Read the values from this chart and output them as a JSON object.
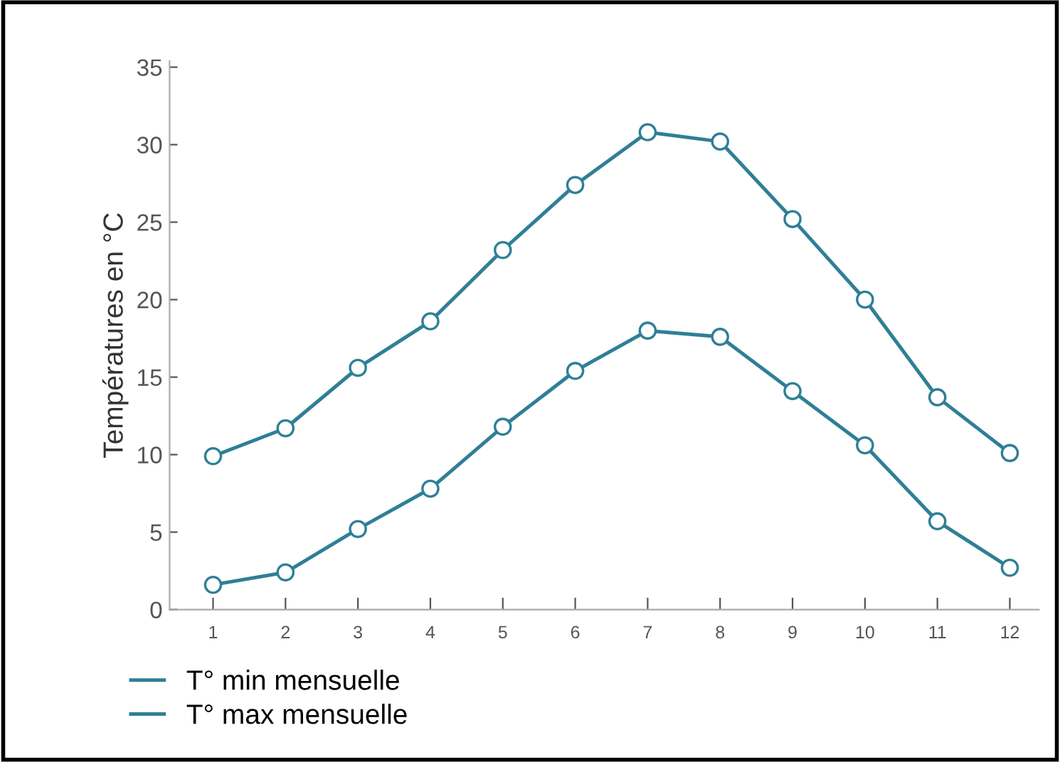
{
  "chart_data": {
    "type": "line",
    "ylabel": "Températures en °C",
    "x": [
      1,
      2,
      3,
      4,
      5,
      6,
      7,
      8,
      9,
      10,
      11,
      12
    ],
    "series": [
      {
        "name": "T° min mensuelle",
        "color": "#2f7f96",
        "values": [
          1.6,
          2.4,
          5.2,
          7.8,
          11.8,
          15.4,
          18.0,
          17.6,
          14.1,
          10.6,
          5.7,
          2.7
        ]
      },
      {
        "name": "T° max mensuelle",
        "color": "#2f7f96",
        "values": [
          9.9,
          11.7,
          15.6,
          18.6,
          23.2,
          27.4,
          30.8,
          30.2,
          25.2,
          20.0,
          13.7,
          10.1
        ]
      }
    ],
    "xlim": [
      0.4,
      12.4
    ],
    "xticks": [
      1,
      2,
      3,
      4,
      5,
      6,
      7,
      8,
      9,
      10,
      11,
      12
    ],
    "ylim": [
      0,
      35.4
    ],
    "yticks": [
      0,
      5,
      10,
      15,
      20,
      25,
      30,
      35
    ],
    "marker": "circle",
    "line_style": "solid",
    "grid": false,
    "legend": "bottom left"
  }
}
